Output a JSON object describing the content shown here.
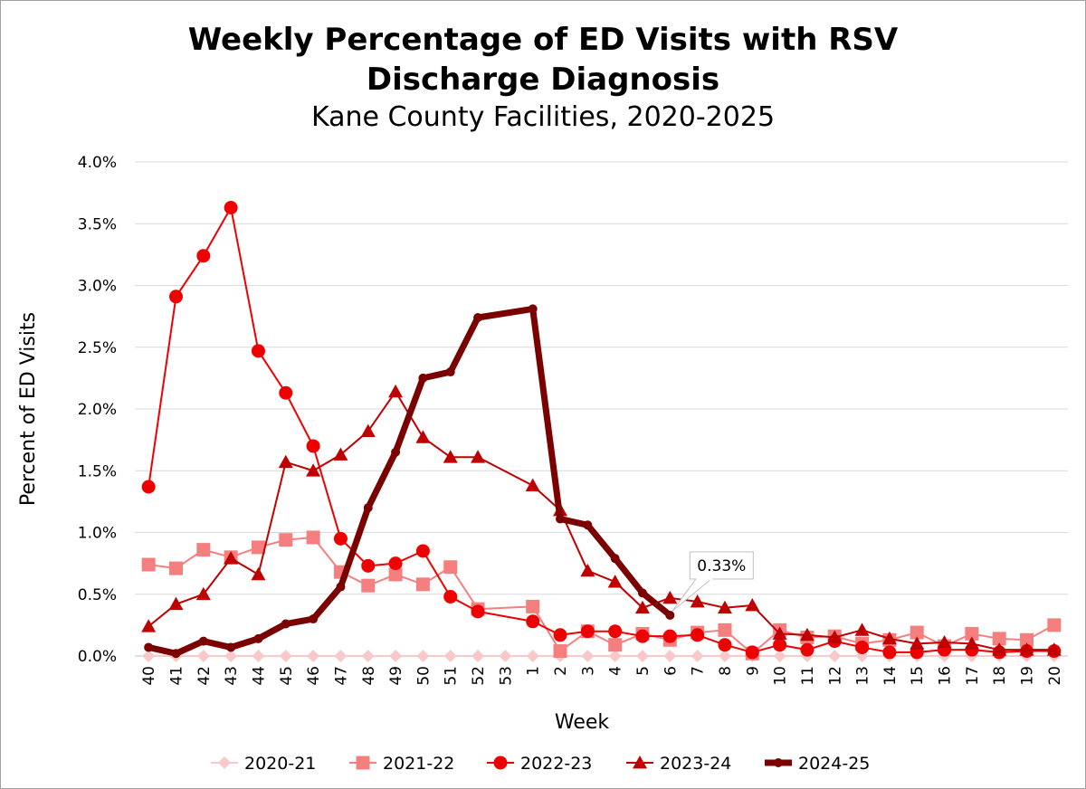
{
  "chart_data": {
    "type": "line",
    "title": "Weekly Percentage of ED Visits with RSV Discharge Diagnosis",
    "title_line1": "Weekly Percentage of ED Visits with RSV",
    "title_line2": "Discharge Diagnosis",
    "subtitle": "Kane County Facilities, 2020-2025",
    "xlabel": "Week",
    "ylabel": "Percent of ED Visits",
    "ylim": [
      0,
      4.0
    ],
    "yticks": [
      "0.0%",
      "0.5%",
      "1.0%",
      "1.5%",
      "2.0%",
      "2.5%",
      "3.0%",
      "3.5%",
      "4.0%"
    ],
    "ytick_values": [
      0,
      0.5,
      1.0,
      1.5,
      2.0,
      2.5,
      3.0,
      3.5,
      4.0
    ],
    "grid": true,
    "legend_position": "bottom",
    "categories": [
      "40",
      "41",
      "42",
      "43",
      "44",
      "45",
      "46",
      "47",
      "48",
      "49",
      "50",
      "51",
      "52",
      "53",
      "1",
      "2",
      "3",
      "4",
      "5",
      "6",
      "7",
      "8",
      "9",
      "10",
      "11",
      "12",
      "13",
      "14",
      "15",
      "16",
      "17",
      "18",
      "19",
      "20"
    ],
    "series": [
      {
        "name": "2020-21",
        "color": "#F9C9C9",
        "marker": "diamond",
        "width": 2,
        "values": [
          0,
          0,
          0,
          0,
          0,
          0,
          0,
          0,
          0,
          0,
          0,
          0,
          0,
          0,
          0,
          0,
          0,
          0,
          0,
          0,
          0,
          0,
          0,
          0,
          0,
          0,
          0,
          0,
          0,
          0,
          0,
          0,
          0,
          0
        ]
      },
      {
        "name": "2021-22",
        "color": "#F57F7F",
        "marker": "square",
        "width": 2,
        "values": [
          0.74,
          0.71,
          0.86,
          0.8,
          0.88,
          0.94,
          0.96,
          0.68,
          0.57,
          0.66,
          0.58,
          0.72,
          0.38,
          null,
          0.4,
          0.04,
          0.2,
          0.09,
          0.18,
          0.13,
          0.19,
          0.21,
          0.02,
          0.21,
          0.15,
          0.16,
          0.1,
          0.13,
          0.19,
          0.08,
          0.18,
          0.14,
          0.13,
          0.25
        ]
      },
      {
        "name": "2022-23",
        "color": "#EE0000",
        "marker": "circle",
        "width": 2,
        "values": [
          1.37,
          2.91,
          3.24,
          3.63,
          2.47,
          2.13,
          1.7,
          0.95,
          0.73,
          0.75,
          0.85,
          0.48,
          0.36,
          null,
          0.28,
          0.17,
          0.2,
          0.2,
          0.16,
          0.16,
          0.17,
          0.09,
          0.03,
          0.09,
          0.05,
          0.12,
          0.07,
          0.03,
          0.03,
          0.05,
          0.05,
          0.03,
          0.04,
          0.04
        ]
      },
      {
        "name": "2023-24",
        "color": "#C00000",
        "marker": "triangle",
        "width": 2,
        "values": [
          0.24,
          0.42,
          0.5,
          0.79,
          0.66,
          1.57,
          1.5,
          1.63,
          1.82,
          2.14,
          1.77,
          1.61,
          1.61,
          null,
          1.38,
          1.18,
          0.69,
          0.6,
          0.39,
          0.47,
          0.44,
          0.39,
          0.41,
          0.18,
          0.17,
          0.15,
          0.21,
          0.14,
          0.1,
          0.11,
          0.1,
          0.05,
          0.05,
          0.05
        ]
      },
      {
        "name": "2024-25",
        "color": "#7B0000",
        "marker": "smallcircle",
        "width": 7,
        "values": [
          0.07,
          0.02,
          0.12,
          0.07,
          0.14,
          0.26,
          0.3,
          0.56,
          1.2,
          1.65,
          2.25,
          2.3,
          2.74,
          null,
          2.81,
          1.11,
          1.06,
          0.79,
          0.51,
          0.33,
          null,
          null,
          null,
          null,
          null,
          null,
          null,
          null,
          null,
          null,
          null,
          null,
          null,
          null
        ]
      }
    ],
    "annotation": {
      "text": "0.33%",
      "series": "2024-25",
      "category": "6",
      "value": 0.33
    }
  }
}
